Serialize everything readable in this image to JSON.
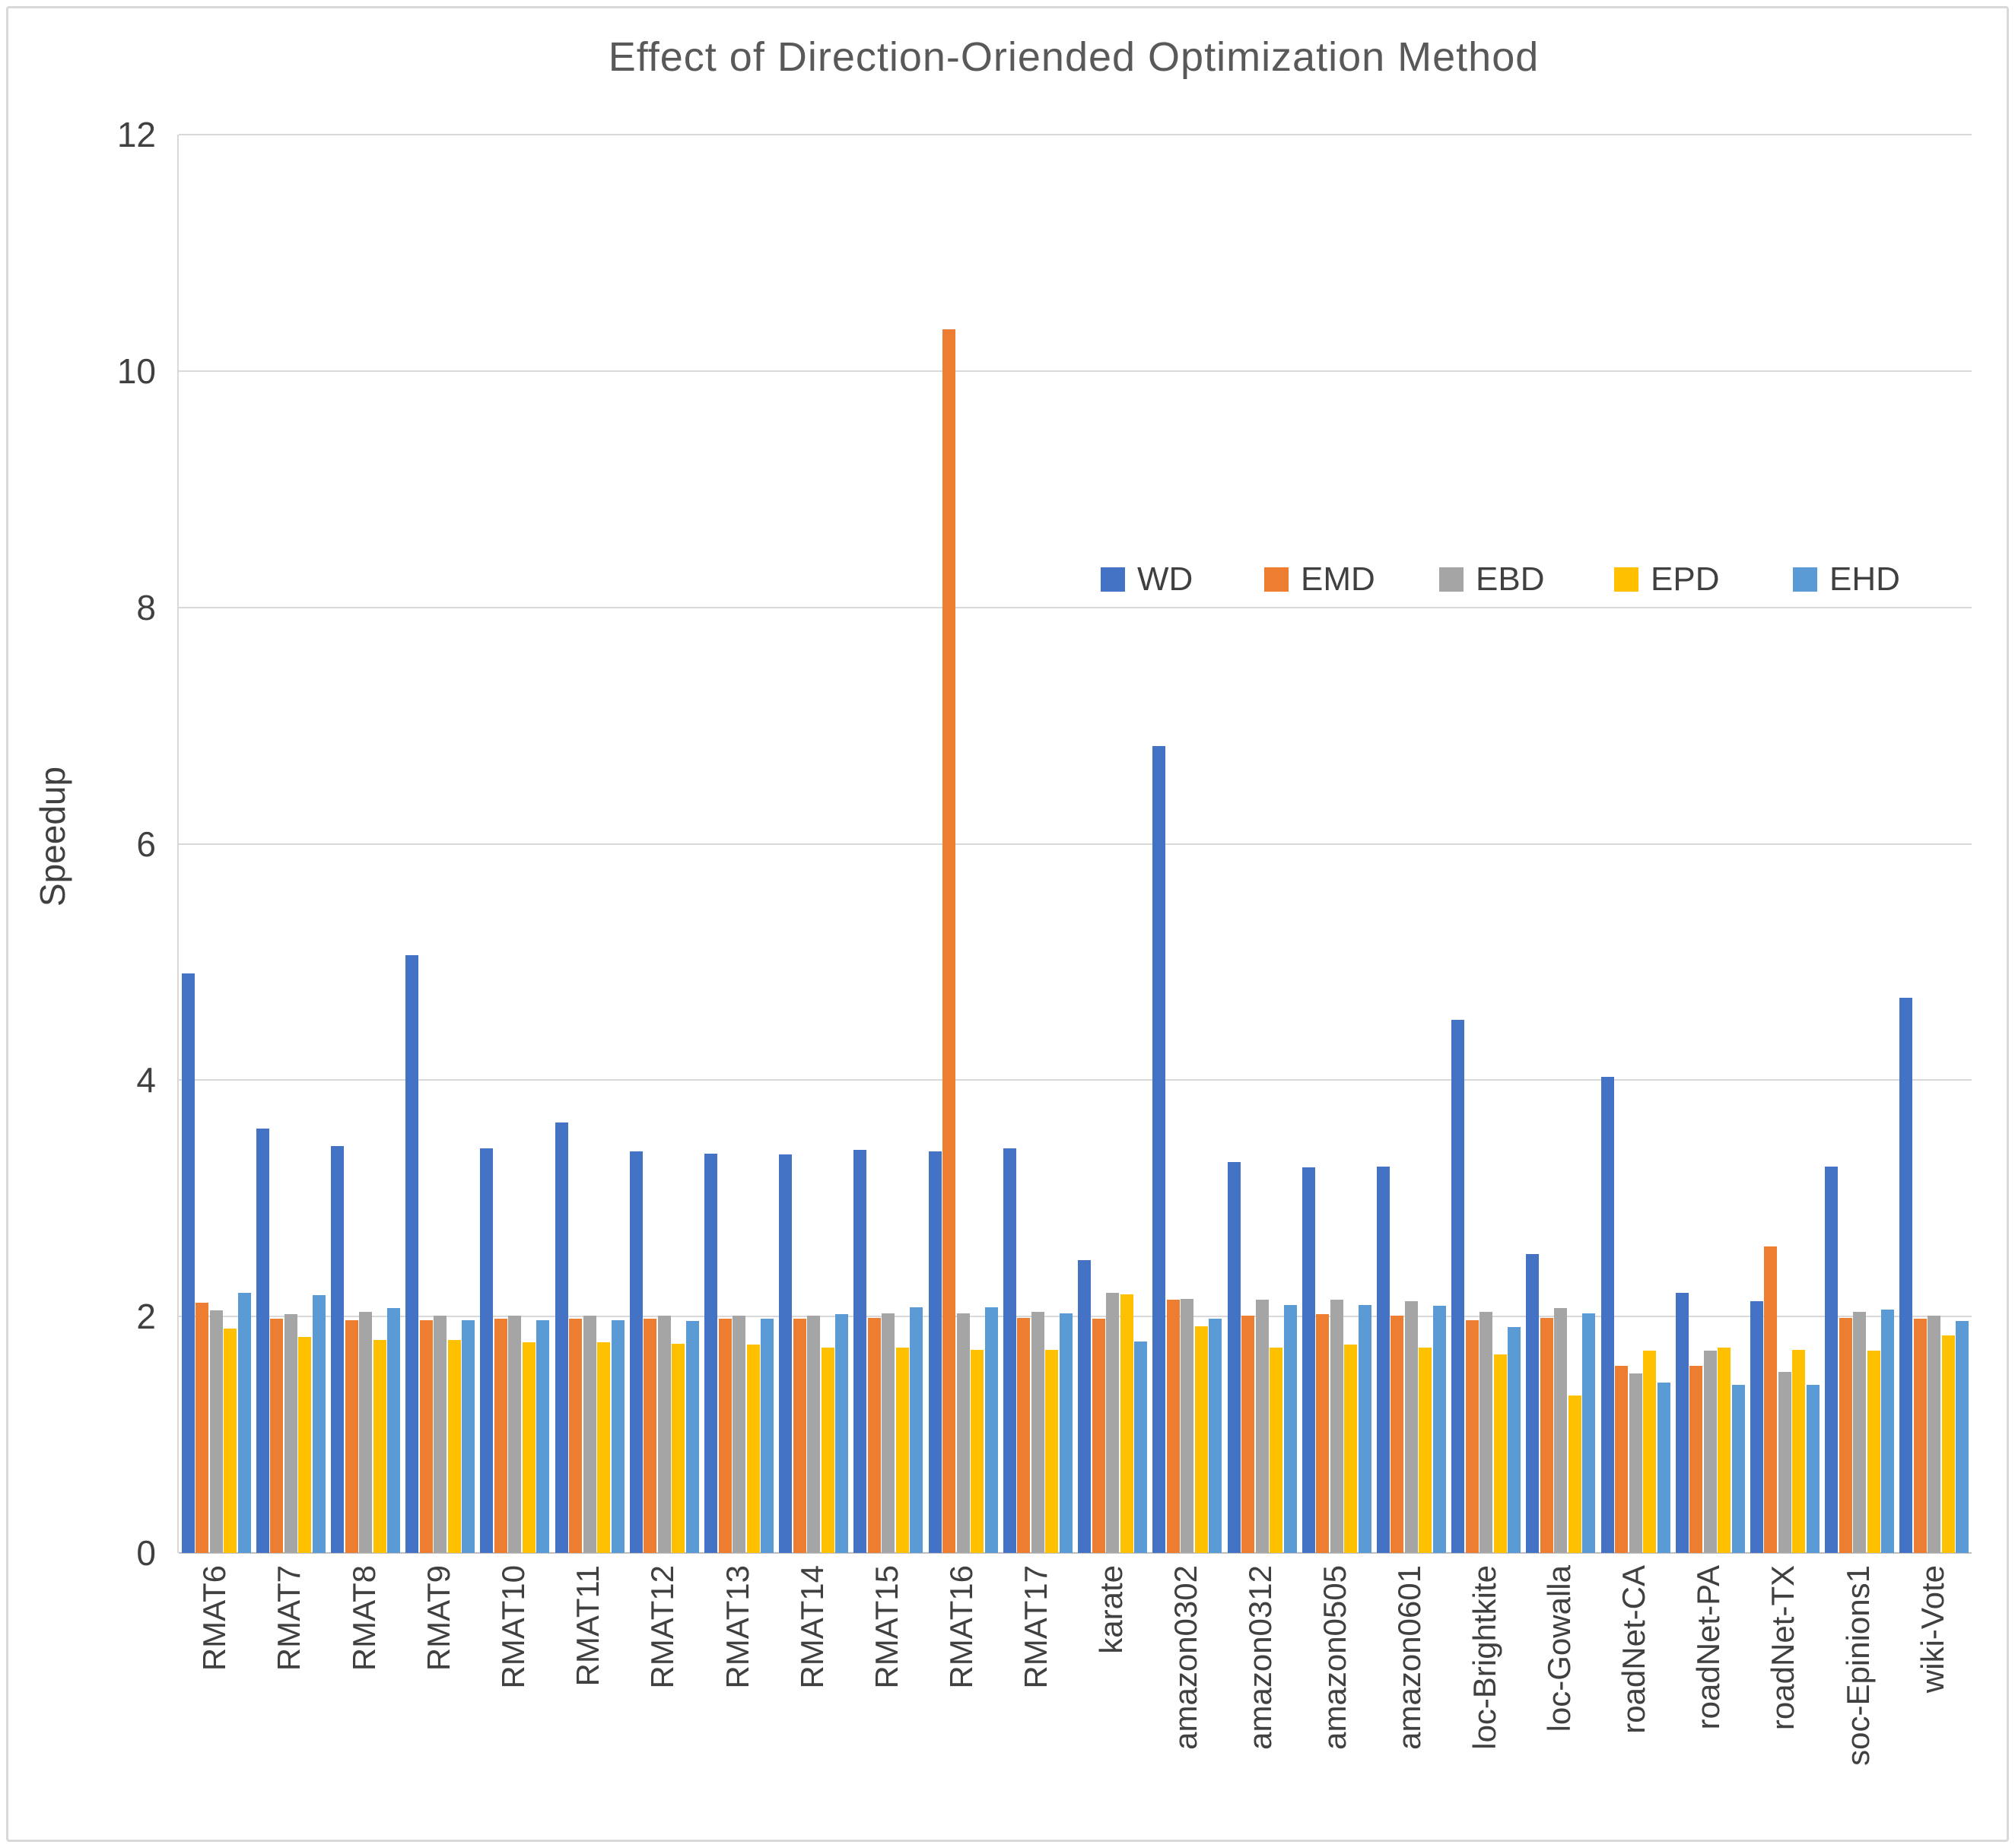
{
  "title": "Effect of Direction-Oriended Optimization Method",
  "y_axis": {
    "label": "Speedup",
    "ticks": [
      0,
      2,
      4,
      6,
      8,
      10,
      12
    ],
    "min": 0,
    "max": 12
  },
  "legend": {
    "items": [
      "WD",
      "EMD",
      "EBD",
      "EPD",
      "EHD"
    ],
    "position": "inside-top-right"
  },
  "colors": {
    "WD": "#4472C4",
    "EMD": "#ED7D31",
    "EBD": "#A5A5A5",
    "EPD": "#FFC000",
    "EHD": "#5B9BD5",
    "gridline": "#d9d9d9",
    "axis_text": "#404040",
    "title_text": "#595959"
  },
  "chart_data": {
    "type": "bar",
    "title": "Effect of Direction-Oriended Optimization Method",
    "xlabel": "",
    "ylabel": "Speedup",
    "ylim": [
      0,
      12
    ],
    "yticks": [
      0,
      2,
      4,
      6,
      8,
      10,
      12
    ],
    "grid": true,
    "legend_position": "inside-top-right",
    "categories": [
      "RMAT6",
      "RMAT7",
      "RMAT8",
      "RMAT9",
      "RMAT10",
      "RMAT11",
      "RMAT12",
      "RMAT13",
      "RMAT14",
      "RMAT15",
      "RMAT16",
      "RMAT17",
      "karate",
      "amazon0302",
      "amazon0312",
      "amazon0505",
      "amazon0601",
      "loc-Brightkite",
      "loc-Gowalla",
      "roadNet-CA",
      "roadNet-PA",
      "roadNet-TX",
      "soc-Epinions1",
      "wiki-Vote"
    ],
    "series": [
      {
        "name": "WD",
        "color": "#4472C4",
        "values": [
          4.9,
          3.59,
          3.44,
          5.06,
          3.42,
          3.64,
          3.4,
          3.38,
          3.37,
          3.41,
          3.4,
          3.42,
          2.48,
          6.83,
          3.31,
          3.26,
          3.27,
          4.51,
          2.53,
          4.03,
          2.2,
          2.13,
          3.27,
          4.7
        ]
      },
      {
        "name": "EMD",
        "color": "#ED7D31",
        "values": [
          2.12,
          1.98,
          1.97,
          1.97,
          1.98,
          1.98,
          1.98,
          1.98,
          1.98,
          1.99,
          10.35,
          1.99,
          1.98,
          2.14,
          2.01,
          2.02,
          2.01,
          1.97,
          1.99,
          1.58,
          1.58,
          2.59,
          1.99,
          1.98
        ]
      },
      {
        "name": "EBD",
        "color": "#A5A5A5",
        "values": [
          2.05,
          2.02,
          2.04,
          2.01,
          2.01,
          2.01,
          2.01,
          2.01,
          2.01,
          2.03,
          2.03,
          2.04,
          2.2,
          2.15,
          2.14,
          2.14,
          2.13,
          2.04,
          2.07,
          1.52,
          1.71,
          1.53,
          2.04,
          2.01
        ]
      },
      {
        "name": "EPD",
        "color": "#FFC000",
        "values": [
          1.9,
          1.83,
          1.8,
          1.8,
          1.78,
          1.78,
          1.77,
          1.76,
          1.74,
          1.74,
          1.72,
          1.72,
          2.19,
          1.92,
          1.74,
          1.76,
          1.74,
          1.68,
          1.33,
          1.71,
          1.74,
          1.72,
          1.71,
          1.84
        ]
      },
      {
        "name": "EHD",
        "color": "#5B9BD5",
        "values": [
          2.2,
          2.18,
          2.07,
          1.97,
          1.97,
          1.97,
          1.96,
          1.98,
          2.02,
          2.08,
          2.08,
          2.03,
          1.79,
          1.98,
          2.1,
          2.1,
          2.09,
          1.91,
          2.03,
          1.44,
          1.42,
          1.42,
          2.06,
          1.96
        ]
      }
    ]
  }
}
